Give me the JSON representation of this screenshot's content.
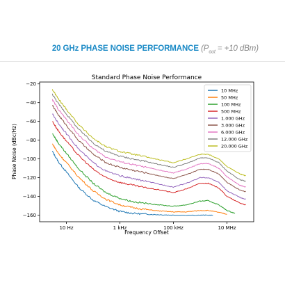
{
  "banner": {
    "title_main": "20 GHz PHASE NOISE PERFORMANCE",
    "title_sub_open": "(P",
    "title_sub_subscript": "out",
    "title_sub_close": " = +10 dBm)"
  },
  "chart_data": {
    "type": "line",
    "title": "Standard Phase Noise Performance",
    "xlabel": "Frequency Offset",
    "ylabel": "Phase Noise (dBc/Hz)",
    "x_scale": "log",
    "xlim": [
      1,
      100000000
    ],
    "ylim": [
      -167,
      -18
    ],
    "x_ticks": [
      {
        "value": 10,
        "label": "10 Hz"
      },
      {
        "value": 1000,
        "label": "1 kHz"
      },
      {
        "value": 100000,
        "label": "100 kHz"
      },
      {
        "value": 10000000,
        "label": "10 MHz"
      }
    ],
    "y_ticks": [
      -20,
      -40,
      -60,
      -80,
      -100,
      -120,
      -140,
      -160
    ],
    "y_tick_labels": [
      "−20",
      "−40",
      "−60",
      "−80",
      "−100",
      "−120",
      "−140",
      "−160"
    ],
    "grid": false,
    "legend_position": "top-right",
    "series": [
      {
        "name": "10 MHz",
        "color": "#1f77b4",
        "points": [
          [
            3,
            -92
          ],
          [
            5,
            -103
          ],
          [
            10,
            -114
          ],
          [
            30,
            -131
          ],
          [
            100,
            -144
          ],
          [
            300,
            -151
          ],
          [
            1000,
            -156
          ],
          [
            3000,
            -158
          ],
          [
            10000,
            -159
          ],
          [
            30000,
            -159.5
          ],
          [
            100000,
            -160
          ],
          [
            1000000,
            -160
          ],
          [
            3000000,
            -160
          ]
        ]
      },
      {
        "name": "50 MHz",
        "color": "#ff7f0e",
        "points": [
          [
            3,
            -84
          ],
          [
            5,
            -94
          ],
          [
            10,
            -104
          ],
          [
            30,
            -120
          ],
          [
            100,
            -134
          ],
          [
            300,
            -143
          ],
          [
            1000,
            -149
          ],
          [
            3000,
            -152
          ],
          [
            10000,
            -154
          ],
          [
            30000,
            -155.5
          ],
          [
            100000,
            -156.5
          ],
          [
            300000,
            -156.5
          ],
          [
            1000000,
            -155
          ],
          [
            2000000,
            -155
          ],
          [
            5000000,
            -157
          ],
          [
            10000000,
            -159
          ]
        ]
      },
      {
        "name": "100 MHz",
        "color": "#2ca02c",
        "points": [
          [
            3,
            -73
          ],
          [
            5,
            -83
          ],
          [
            10,
            -94
          ],
          [
            30,
            -111
          ],
          [
            100,
            -126
          ],
          [
            300,
            -136
          ],
          [
            1000,
            -142
          ],
          [
            3000,
            -145.5
          ],
          [
            10000,
            -147.5
          ],
          [
            30000,
            -149
          ],
          [
            100000,
            -150.5
          ],
          [
            300000,
            -149
          ],
          [
            1000000,
            -145
          ],
          [
            2000000,
            -144.5
          ],
          [
            5000000,
            -149
          ],
          [
            10000000,
            -155
          ],
          [
            20000000,
            -158
          ]
        ]
      },
      {
        "name": "500 MHz",
        "color": "#d62728",
        "points": [
          [
            3,
            -60
          ],
          [
            5,
            -70
          ],
          [
            10,
            -81
          ],
          [
            30,
            -97
          ],
          [
            100,
            -111
          ],
          [
            300,
            -120
          ],
          [
            1000,
            -125
          ],
          [
            3000,
            -128
          ],
          [
            10000,
            -131
          ],
          [
            30000,
            -133
          ],
          [
            100000,
            -136
          ],
          [
            300000,
            -132
          ],
          [
            1000000,
            -126
          ],
          [
            2000000,
            -126
          ],
          [
            5000000,
            -131
          ],
          [
            10000000,
            -140
          ],
          [
            30000000,
            -147
          ],
          [
            50000000,
            -149
          ]
        ]
      },
      {
        "name": "1.000 GHz",
        "color": "#9467bd",
        "points": [
          [
            3,
            -52
          ],
          [
            5,
            -62
          ],
          [
            10,
            -73
          ],
          [
            30,
            -90
          ],
          [
            100,
            -104
          ],
          [
            300,
            -113
          ],
          [
            1000,
            -118
          ],
          [
            3000,
            -121
          ],
          [
            10000,
            -124
          ],
          [
            30000,
            -127
          ],
          [
            100000,
            -130
          ],
          [
            300000,
            -126
          ],
          [
            1000000,
            -120
          ],
          [
            2000000,
            -120
          ],
          [
            5000000,
            -125
          ],
          [
            10000000,
            -134
          ],
          [
            30000000,
            -141
          ],
          [
            50000000,
            -143
          ]
        ]
      },
      {
        "name": "3.000 GHz",
        "color": "#8c564b",
        "points": [
          [
            3,
            -43
          ],
          [
            5,
            -53
          ],
          [
            10,
            -64
          ],
          [
            30,
            -81
          ],
          [
            100,
            -95
          ],
          [
            300,
            -104
          ],
          [
            1000,
            -109
          ],
          [
            3000,
            -112
          ],
          [
            10000,
            -115
          ],
          [
            30000,
            -118
          ],
          [
            100000,
            -121
          ],
          [
            300000,
            -117
          ],
          [
            1000000,
            -111
          ],
          [
            2000000,
            -111
          ],
          [
            5000000,
            -116
          ],
          [
            10000000,
            -125
          ],
          [
            30000000,
            -133
          ],
          [
            50000000,
            -135
          ]
        ]
      },
      {
        "name": "6.000 GHz",
        "color": "#e377c2",
        "points": [
          [
            3,
            -37
          ],
          [
            5,
            -47
          ],
          [
            10,
            -58
          ],
          [
            30,
            -75
          ],
          [
            100,
            -89
          ],
          [
            300,
            -98
          ],
          [
            1000,
            -103
          ],
          [
            3000,
            -106
          ],
          [
            10000,
            -109
          ],
          [
            30000,
            -112
          ],
          [
            100000,
            -115
          ],
          [
            300000,
            -111
          ],
          [
            1000000,
            -105
          ],
          [
            2000000,
            -105
          ],
          [
            5000000,
            -110
          ],
          [
            10000000,
            -119
          ],
          [
            30000000,
            -128
          ],
          [
            50000000,
            -130
          ]
        ]
      },
      {
        "name": "12.000 GHz",
        "color": "#7f7f7f",
        "points": [
          [
            3,
            -31
          ],
          [
            5,
            -41
          ],
          [
            10,
            -52
          ],
          [
            30,
            -69
          ],
          [
            100,
            -83
          ],
          [
            300,
            -92
          ],
          [
            1000,
            -97
          ],
          [
            3000,
            -100
          ],
          [
            10000,
            -103
          ],
          [
            30000,
            -106
          ],
          [
            100000,
            -109
          ],
          [
            300000,
            -105
          ],
          [
            1000000,
            -99
          ],
          [
            2000000,
            -99
          ],
          [
            5000000,
            -104
          ],
          [
            10000000,
            -113
          ],
          [
            30000000,
            -122
          ],
          [
            50000000,
            -124
          ]
        ]
      },
      {
        "name": "20.000 GHz",
        "color": "#bcbd22",
        "points": [
          [
            3,
            -26
          ],
          [
            5,
            -36
          ],
          [
            10,
            -47
          ],
          [
            30,
            -64
          ],
          [
            100,
            -78
          ],
          [
            300,
            -87
          ],
          [
            1000,
            -92
          ],
          [
            3000,
            -95
          ],
          [
            10000,
            -98
          ],
          [
            30000,
            -101
          ],
          [
            100000,
            -104
          ],
          [
            300000,
            -100
          ],
          [
            1000000,
            -95
          ],
          [
            2000000,
            -95
          ],
          [
            5000000,
            -100
          ],
          [
            10000000,
            -108
          ],
          [
            30000000,
            -116
          ],
          [
            50000000,
            -118
          ]
        ]
      }
    ]
  }
}
